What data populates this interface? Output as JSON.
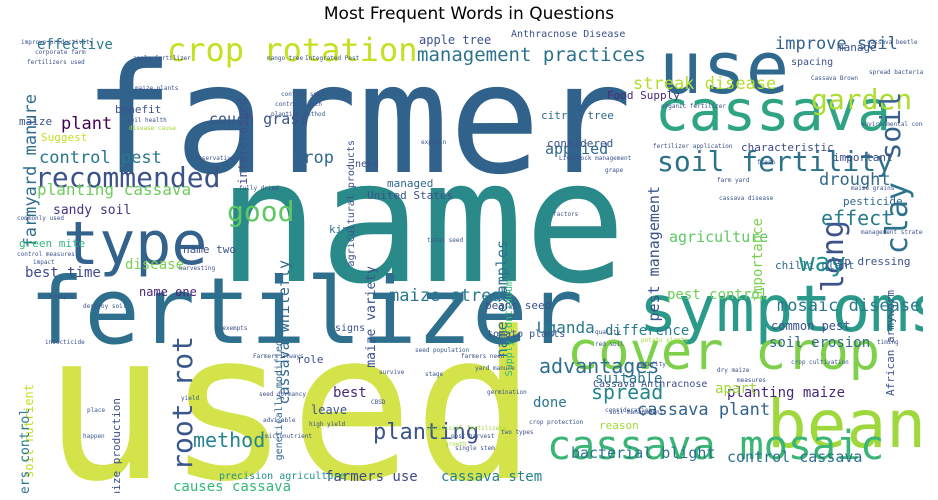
{
  "chart_data": {
    "type": "wordcloud",
    "title": "Most Frequent Words in Questions",
    "palette": [
      "#440154",
      "#46327e",
      "#365c8d",
      "#277f8e",
      "#1fa187",
      "#4ac16d",
      "#a0da39",
      "#fde725"
    ],
    "words": [
      {
        "text": "name",
        "weight": 1.0,
        "color": "#2a8a8a"
      },
      {
        "text": "farmer",
        "weight": 0.9,
        "color": "#31628c"
      },
      {
        "text": "used",
        "weight": 0.95,
        "color": "#d4e34a"
      },
      {
        "text": "fertilizer",
        "weight": 0.62,
        "color": "#2f6f8e"
      },
      {
        "text": "symptoms",
        "weight": 0.55,
        "color": "#2a9a8a"
      },
      {
        "text": "use",
        "weight": 0.5,
        "color": "#2f6a8e"
      },
      {
        "text": "cassava",
        "weight": 0.42,
        "color": "#2fa485"
      },
      {
        "text": "bean",
        "weight": 0.45,
        "color": "#9fd83d"
      },
      {
        "text": "type",
        "weight": 0.38,
        "color": "#33638d"
      },
      {
        "text": "cover crop",
        "weight": 0.35,
        "color": "#7ed04b"
      },
      {
        "text": "cassava mosaic",
        "weight": 0.28,
        "color": "#3ab576"
      },
      {
        "text": "crop rotation",
        "weight": 0.22,
        "color": "#c5e021"
      },
      {
        "text": "soil fertility",
        "weight": 0.19,
        "color": "#2c718e"
      },
      {
        "text": "recommended",
        "weight": 0.18,
        "color": "#3b528b"
      },
      {
        "text": "good",
        "weight": 0.18,
        "color": "#5ec962"
      },
      {
        "text": "garden",
        "weight": 0.17,
        "color": "#addc30"
      },
      {
        "text": "soil",
        "weight": 0.17,
        "color": "#35608d"
      },
      {
        "text": "clay",
        "weight": 0.18,
        "color": "#2c728e"
      },
      {
        "text": "long",
        "weight": 0.17,
        "color": "#3b528b"
      },
      {
        "text": "way",
        "weight": 0.17,
        "color": "#21918c"
      },
      {
        "text": "root rot",
        "weight": 0.17,
        "color": "#38588c"
      },
      {
        "text": "management practices",
        "weight": 0.14,
        "color": "#2c728e"
      },
      {
        "text": "improve soil",
        "weight": 0.13,
        "color": "#33638d"
      },
      {
        "text": "streak disease",
        "weight": 0.12,
        "color": "#b5de2b"
      },
      {
        "text": "control pest",
        "weight": 0.12,
        "color": "#2a768e"
      },
      {
        "text": "farmyard manure",
        "weight": 0.12,
        "color": "#2f6c8e"
      },
      {
        "text": "planting cassava",
        "weight": 0.12,
        "color": "#6ccd5a"
      },
      {
        "text": "effect",
        "weight": 0.12,
        "color": "#287c8e"
      },
      {
        "text": "drought",
        "weight": 0.11,
        "color": "#31688e"
      },
      {
        "text": "maize streak",
        "weight": 0.12,
        "color": "#2a788e"
      },
      {
        "text": "mosaic disease",
        "weight": 0.13,
        "color": "#2a788e"
      },
      {
        "text": "method",
        "weight": 0.12,
        "color": "#25848e"
      },
      {
        "text": "planting",
        "weight": 0.12,
        "color": "#3b528b"
      },
      {
        "text": "advantages",
        "weight": 0.12,
        "color": "#2e6e8e"
      },
      {
        "text": "spread",
        "weight": 0.11,
        "color": "#25858e"
      },
      {
        "text": "cassava plant",
        "weight": 0.12,
        "color": "#33638d"
      },
      {
        "text": "bacterial blight",
        "weight": 0.11,
        "color": "#2c728e"
      },
      {
        "text": "control cassava",
        "weight": 0.11,
        "color": "#2d708e"
      },
      {
        "text": "causes cassava",
        "weight": 0.1,
        "color": "#35b779"
      },
      {
        "text": "farmers use",
        "weight": 0.09,
        "color": "#3e4a89"
      },
      {
        "text": "cassava stem",
        "weight": 0.09,
        "color": "#27808e"
      },
      {
        "text": "pest management",
        "weight": 0.1,
        "color": "#3b528b"
      },
      {
        "text": "pest control",
        "weight": 0.09,
        "color": "#6ece58"
      },
      {
        "text": "Uganda",
        "weight": 0.1,
        "color": "#2a788e"
      },
      {
        "text": "cassava whitefly",
        "weight": 0.1,
        "color": "#31688e"
      },
      {
        "text": "name examples",
        "weight": 0.1,
        "color": "#2c728e"
      },
      {
        "text": "maize variety",
        "weight": 0.09,
        "color": "#3b528b"
      },
      {
        "text": "agriculture",
        "weight": 0.09,
        "color": "#5ec962"
      },
      {
        "text": "importance",
        "weight": 0.09,
        "color": "#7ad151"
      },
      {
        "text": "crop",
        "weight": 0.1,
        "color": "#31688e"
      },
      {
        "text": "applied",
        "weight": 0.09,
        "color": "#31688e"
      },
      {
        "text": "plant",
        "weight": 0.1,
        "color": "#440154"
      },
      {
        "text": "couch grass",
        "weight": 0.09,
        "color": "#3b528b"
      },
      {
        "text": "effective",
        "weight": 0.09,
        "color": "#287c8e"
      },
      {
        "text": "apple tree",
        "weight": 0.08,
        "color": "#3b528b"
      },
      {
        "text": "sandy soil",
        "weight": 0.08,
        "color": "#46327e"
      },
      {
        "text": "best time",
        "weight": 0.08,
        "color": "#3e4a89"
      },
      {
        "text": "disease",
        "weight": 0.08,
        "color": "#7ad151"
      },
      {
        "text": "planting maize",
        "weight": 0.08,
        "color": "#482878"
      },
      {
        "text": "soil erosion",
        "weight": 0.08,
        "color": "#31688e"
      },
      {
        "text": "common pest",
        "weight": 0.07,
        "color": "#3b528b"
      },
      {
        "text": "difference",
        "weight": 0.07,
        "color": "#287c8e"
      },
      {
        "text": "suitable",
        "weight": 0.07,
        "color": "#2a788e"
      },
      {
        "text": "apart",
        "weight": 0.07,
        "color": "#a0da39"
      },
      {
        "text": "done",
        "weight": 0.07,
        "color": "#2c728e"
      },
      {
        "text": "best",
        "weight": 0.07,
        "color": "#482878"
      },
      {
        "text": "leave",
        "weight": 0.06,
        "color": "#3b528b"
      },
      {
        "text": "name one",
        "weight": 0.07,
        "color": "#482878"
      },
      {
        "text": "name two",
        "weight": 0.06,
        "color": "#3b528b"
      },
      {
        "text": "soil nutrient",
        "weight": 0.07,
        "color": "#c2df23"
      },
      {
        "text": "farmers control",
        "weight": 0.07,
        "color": "#2a788e"
      },
      {
        "text": "maize production",
        "weight": 0.07,
        "color": "#3b528b"
      },
      {
        "text": "kind",
        "weight": 0.07,
        "color": "#2a788e"
      },
      {
        "text": "United States",
        "weight": 0.06,
        "color": "#3b528b"
      },
      {
        "text": "managed",
        "weight": 0.06,
        "color": "#31688e"
      },
      {
        "text": "important",
        "weight": 0.06,
        "color": "#3e4a89"
      },
      {
        "text": "pesticide",
        "weight": 0.06,
        "color": "#31688e"
      },
      {
        "text": "chilli plant",
        "weight": 0.06,
        "color": "#31688e"
      },
      {
        "text": "top dressing",
        "weight": 0.06,
        "color": "#3b528b"
      },
      {
        "text": "maize",
        "weight": 0.06,
        "color": "#3b528b"
      },
      {
        "text": "benefit",
        "weight": 0.06,
        "color": "#3b528b"
      },
      {
        "text": "Suggest",
        "weight": 0.06,
        "color": "#c2df23"
      },
      {
        "text": "green mite",
        "weight": 0.06,
        "color": "#35b779"
      },
      {
        "text": "intercropped",
        "weight": 0.06,
        "color": "#3b528b"
      },
      {
        "text": "Anthracnose Disease",
        "weight": 0.05,
        "color": "#3b528b"
      },
      {
        "text": "citrus tree",
        "weight": 0.05,
        "color": "#31688e"
      },
      {
        "text": "Food Supply",
        "weight": 0.05,
        "color": "#482878"
      },
      {
        "text": "considered",
        "weight": 0.05,
        "color": "#3b528b"
      },
      {
        "text": "characteristic",
        "weight": 0.05,
        "color": "#3e4a89"
      },
      {
        "text": "spacing",
        "weight": 0.05,
        "color": "#3b528b"
      },
      {
        "text": "manage",
        "weight": 0.05,
        "color": "#3b528b"
      },
      {
        "text": "agricultural products",
        "weight": 0.05,
        "color": "#3b528b"
      },
      {
        "text": "Supply Continuum",
        "weight": 0.05,
        "color": "#35b779"
      },
      {
        "text": "genetically modified",
        "weight": 0.05,
        "color": "#31688e"
      },
      {
        "text": "Cassava Anthracnose",
        "weight": 0.05,
        "color": "#3b528b"
      },
      {
        "text": "tomato plants",
        "weight": 0.05,
        "color": "#3b528b"
      },
      {
        "text": "beans seed",
        "weight": 0.05,
        "color": "#3b528b"
      },
      {
        "text": "reason",
        "weight": 0.05,
        "color": "#a0da39"
      },
      {
        "text": "role",
        "weight": 0.05,
        "color": "#3b528b"
      },
      {
        "text": "signs",
        "weight": 0.05,
        "color": "#3b528b"
      },
      {
        "text": "need",
        "weight": 0.05,
        "color": "#3b528b"
      },
      {
        "text": "African armyworm",
        "weight": 0.05,
        "color": "#3b528b"
      },
      {
        "text": "precision agriculture",
        "weight": 0.05,
        "color": "#21918c"
      },
      {
        "text": "Integrated Pest",
        "weight": 0.03,
        "color": "#3b528b"
      },
      {
        "text": "mango tree",
        "weight": 0.03,
        "color": "#3b528b"
      },
      {
        "text": "cassava beetle",
        "weight": 0.03,
        "color": "#3b528b"
      },
      {
        "text": "corporate farm",
        "weight": 0.03,
        "color": "#3b528b"
      },
      {
        "text": "improve productivity",
        "weight": 0.03,
        "color": "#3b528b"
      },
      {
        "text": "fertilizers used",
        "weight": 0.03,
        "color": "#3b528b"
      },
      {
        "text": "apply fertilizer",
        "weight": 0.03,
        "color": "#3b528b"
      },
      {
        "text": "maize plants",
        "weight": 0.03,
        "color": "#3b528b"
      },
      {
        "text": "control soil",
        "weight": 0.03,
        "color": "#3b528b"
      },
      {
        "text": "control couch",
        "weight": 0.03,
        "color": "#3b528b"
      },
      {
        "text": "planting method",
        "weight": 0.03,
        "color": "#3b528b"
      },
      {
        "text": "soil health",
        "weight": 0.03,
        "color": "#3b528b"
      },
      {
        "text": "disease cause",
        "weight": 0.03,
        "color": "#a0da39"
      },
      {
        "text": "preservatives",
        "weight": 0.03,
        "color": "#3b528b"
      },
      {
        "text": "fully dried",
        "weight": 0.03,
        "color": "#3b528b"
      },
      {
        "text": "organic fertilizer",
        "weight": 0.03,
        "color": "#3b528b"
      },
      {
        "text": "Livestock management",
        "weight": 0.03,
        "color": "#3b528b"
      },
      {
        "text": "fertilizer application",
        "weight": 0.03,
        "color": "#3b528b"
      },
      {
        "text": "explain",
        "weight": 0.03,
        "color": "#3b528b"
      },
      {
        "text": "fresh",
        "weight": 0.03,
        "color": "#3b528b"
      },
      {
        "text": "spread bacterial",
        "weight": 0.03,
        "color": "#3b528b"
      },
      {
        "text": "environmental condition",
        "weight": 0.03,
        "color": "#3b528b"
      },
      {
        "text": "management strategies",
        "weight": 0.03,
        "color": "#3b528b"
      },
      {
        "text": "farm yard",
        "weight": 0.03,
        "color": "#3b528b"
      },
      {
        "text": "maize grains",
        "weight": 0.03,
        "color": "#3b528b"
      },
      {
        "text": "cassava disease",
        "weight": 0.03,
        "color": "#3b528b"
      },
      {
        "text": "Cassava Brown",
        "weight": 0.03,
        "color": "#3b528b"
      },
      {
        "text": "grape",
        "weight": 0.03,
        "color": "#3b528b"
      },
      {
        "text": "total seed",
        "weight": 0.03,
        "color": "#3b528b"
      },
      {
        "text": "commonly used",
        "weight": 0.03,
        "color": "#3b528b"
      },
      {
        "text": "control measures",
        "weight": 0.03,
        "color": "#3b528b"
      },
      {
        "text": "destroy soil",
        "weight": 0.03,
        "color": "#3b528b"
      },
      {
        "text": "insecticide",
        "weight": 0.03,
        "color": "#3b528b"
      },
      {
        "text": "seed dormancy",
        "weight": 0.03,
        "color": "#3b528b"
      },
      {
        "text": "high yield",
        "weight": 0.03,
        "color": "#3b528b"
      },
      {
        "text": "micronutrient",
        "weight": 0.03,
        "color": "#3b528b"
      },
      {
        "text": "seed population",
        "weight": 0.03,
        "color": "#3b528b"
      },
      {
        "text": "farmers need",
        "weight": 0.03,
        "color": "#3b528b"
      },
      {
        "text": "Farmers always",
        "weight": 0.03,
        "color": "#3b528b"
      },
      {
        "text": "yard manure",
        "weight": 0.03,
        "color": "#3b528b"
      },
      {
        "text": "germination",
        "weight": 0.03,
        "color": "#3b528b"
      },
      {
        "text": "crop protection",
        "weight": 0.03,
        "color": "#3b528b"
      },
      {
        "text": "post harvest",
        "weight": 0.03,
        "color": "#3b528b"
      },
      {
        "text": "single stem",
        "weight": 0.03,
        "color": "#3b528b"
      },
      {
        "text": "two types",
        "weight": 0.03,
        "color": "#3b528b"
      },
      {
        "text": "artificial fertilizers",
        "weight": 0.03,
        "color": "#a0da39"
      },
      {
        "text": "dry maize",
        "weight": 0.03,
        "color": "#3b528b"
      },
      {
        "text": "soil management",
        "weight": 0.03,
        "color": "#3b528b"
      },
      {
        "text": "crop cultivation",
        "weight": 0.03,
        "color": "#3b528b"
      },
      {
        "text": "red soil",
        "weight": 0.03,
        "color": "#3b528b"
      },
      {
        "text": "potato plants",
        "weight": 0.03,
        "color": "#a0da39"
      },
      {
        "text": "quality",
        "weight": 0.03,
        "color": "#3b528b"
      },
      {
        "text": "maturity",
        "weight": 0.03,
        "color": "#3b528b"
      },
      {
        "text": "yield",
        "weight": 0.03,
        "color": "#3b528b"
      },
      {
        "text": "place",
        "weight": 0.03,
        "color": "#3b528b"
      },
      {
        "text": "happen",
        "weight": 0.03,
        "color": "#3b528b"
      },
      {
        "text": "advisable",
        "weight": 0.03,
        "color": "#3b528b"
      },
      {
        "text": "example",
        "weight": 0.03,
        "color": "#3b528b"
      },
      {
        "text": "impact",
        "weight": 0.03,
        "color": "#3b528b"
      },
      {
        "text": "growth",
        "weight": 0.03,
        "color": "#a0da39"
      },
      {
        "text": "factors",
        "weight": 0.03,
        "color": "#3b528b"
      },
      {
        "text": "harvesting",
        "weight": 0.03,
        "color": "#3b528b"
      },
      {
        "text": "stage",
        "weight": 0.03,
        "color": "#3b528b"
      },
      {
        "text": "survive",
        "weight": 0.03,
        "color": "#3b528b"
      },
      {
        "text": "timing",
        "weight": 0.03,
        "color": "#3b528b"
      },
      {
        "text": "measures",
        "weight": 0.03,
        "color": "#3b528b"
      },
      {
        "text": "consideration",
        "weight": 0.03,
        "color": "#3b528b"
      },
      {
        "text": "CBSD",
        "weight": 0.03,
        "color": "#3b528b"
      },
      {
        "text": "5 exempts",
        "weight": 0.03,
        "color": "#3b528b"
      }
    ]
  }
}
